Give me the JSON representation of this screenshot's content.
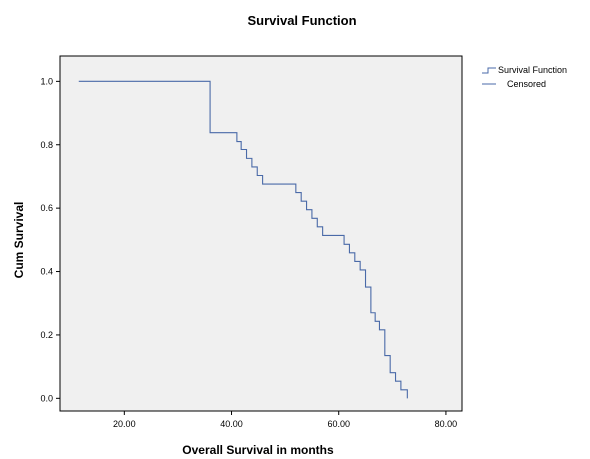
{
  "chart_data": {
    "type": "line",
    "title": "Survival Function",
    "xlabel": "Overall Survival in months",
    "ylabel": "Cum Survival",
    "xlim": [
      8,
      83
    ],
    "ylim": [
      -0.04,
      1.08
    ],
    "x_ticks": [
      20,
      40,
      60,
      80
    ],
    "x_tick_labels": [
      "20.00",
      "40.00",
      "60.00",
      "80.00"
    ],
    "y_ticks": [
      0.0,
      0.2,
      0.4,
      0.6,
      0.8,
      1.0
    ],
    "y_tick_labels": [
      "0.0",
      "0.2",
      "0.4",
      "0.6",
      "0.8",
      "1.0"
    ],
    "grid": false,
    "legend_position": "top-right",
    "legend": [
      "Survival Function",
      "Censored"
    ],
    "series": [
      {
        "name": "Survival Function",
        "step": true,
        "color": "#4a6aa8",
        "points": [
          [
            11.5,
            1.0
          ],
          [
            36.0,
            0.838
          ],
          [
            41.0,
            0.81
          ],
          [
            41.8,
            0.785
          ],
          [
            42.8,
            0.757
          ],
          [
            43.8,
            0.73
          ],
          [
            44.8,
            0.703
          ],
          [
            45.8,
            0.676
          ],
          [
            52.0,
            0.649
          ],
          [
            53.0,
            0.622
          ],
          [
            54.0,
            0.595
          ],
          [
            55.0,
            0.568
          ],
          [
            56.0,
            0.541
          ],
          [
            57.0,
            0.514
          ],
          [
            61.0,
            0.486
          ],
          [
            62.0,
            0.459
          ],
          [
            63.0,
            0.432
          ],
          [
            64.0,
            0.405
          ],
          [
            65.0,
            0.351
          ],
          [
            66.0,
            0.27
          ],
          [
            66.8,
            0.243
          ],
          [
            67.6,
            0.216
          ],
          [
            68.6,
            0.135
          ],
          [
            69.6,
            0.081
          ],
          [
            70.6,
            0.054
          ],
          [
            71.6,
            0.027
          ],
          [
            72.8,
            0.0
          ]
        ]
      }
    ],
    "colors": {
      "line": "#4a6aa8",
      "plot_background": "#f0f0f0",
      "frame": "#000000"
    }
  }
}
